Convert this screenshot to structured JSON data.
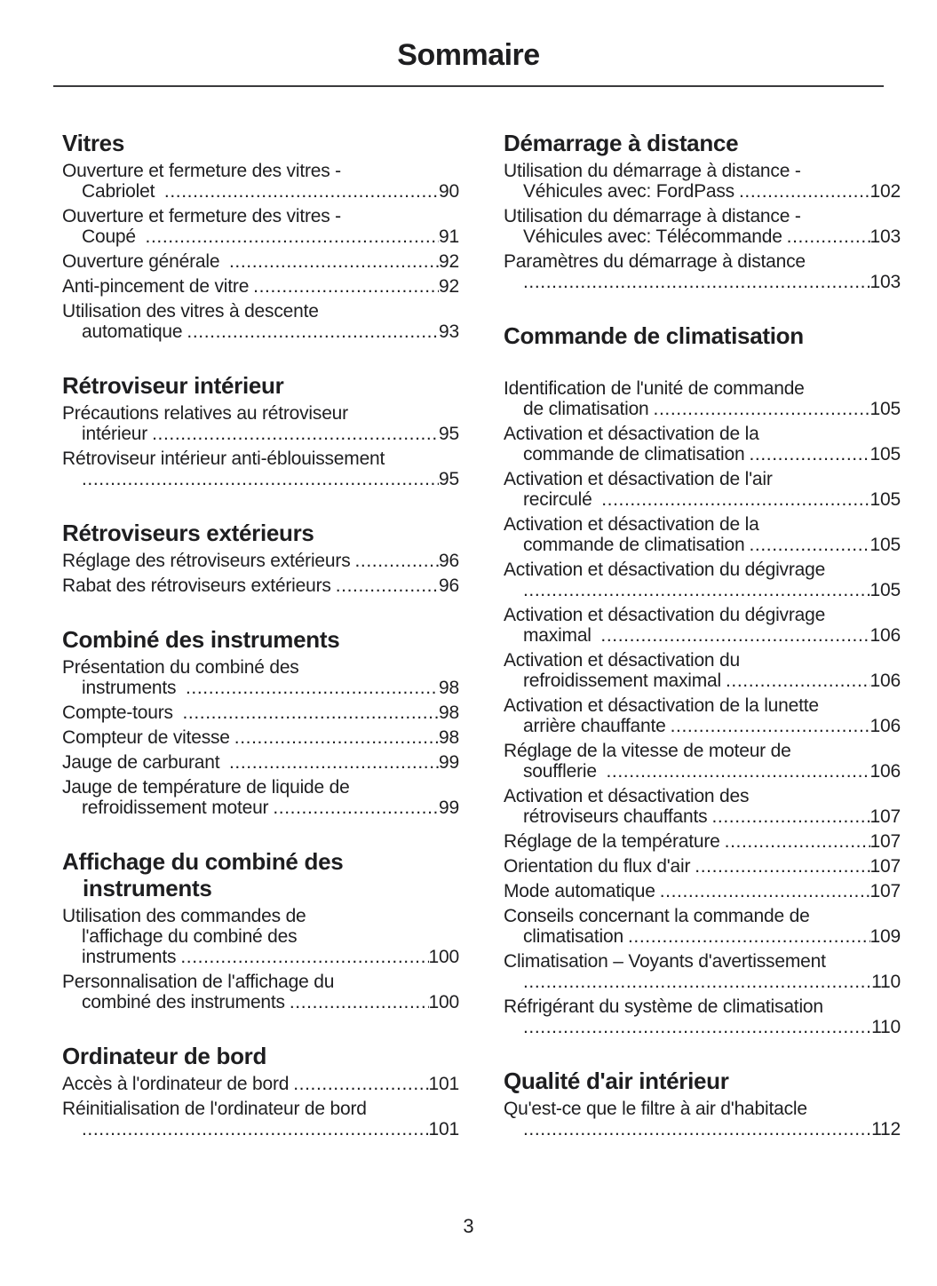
{
  "title": "Sommaire",
  "page_number": "3",
  "colors": {
    "ink": "#1e1e20",
    "rule": "#3a3a3c",
    "background": "#ffffff"
  },
  "columns": [
    {
      "sections": [
        {
          "heading": [
            "Vitres"
          ],
          "entries": [
            {
              "lines": [
                "Ouverture et fermeture des vitres -"
              ],
              "last": "Cabriolet ",
              "page": "90"
            },
            {
              "lines": [
                "Ouverture et fermeture des vitres -"
              ],
              "last": "Coupé ",
              "page": "91"
            },
            {
              "lines": [],
              "last": "Ouverture générale ",
              "page": "92"
            },
            {
              "lines": [],
              "last": "Anti-pincement de vitre",
              "page": "92"
            },
            {
              "lines": [
                "Utilisation des vitres à descente"
              ],
              "last": "automatique",
              "page": "93"
            }
          ]
        },
        {
          "heading": [
            "Rétroviseur intérieur"
          ],
          "entries": [
            {
              "lines": [
                "Précautions relatives au rétroviseur"
              ],
              "last": "intérieur",
              "page": "95"
            },
            {
              "lines": [
                "Rétroviseur intérieur anti-éblouissement"
              ],
              "last": "",
              "page": "95"
            }
          ]
        },
        {
          "heading": [
            "Rétroviseurs extérieurs"
          ],
          "entries": [
            {
              "lines": [],
              "last": "Réglage des rétroviseurs extérieurs",
              "page": "96"
            },
            {
              "lines": [],
              "last": "Rabat des rétroviseurs extérieurs",
              "page": "96"
            }
          ]
        },
        {
          "heading": [
            "Combiné des instruments"
          ],
          "entries": [
            {
              "lines": [
                "Présentation du combiné des"
              ],
              "last": "instruments ",
              "page": "98"
            },
            {
              "lines": [],
              "last": "Compte-tours ",
              "page": "98"
            },
            {
              "lines": [],
              "last": "Compteur de vitesse",
              "page": "98"
            },
            {
              "lines": [],
              "last": "Jauge de carburant ",
              "page": "99"
            },
            {
              "lines": [
                "Jauge de température de liquide de"
              ],
              "last": "refroidissement moteur",
              "page": "99"
            }
          ]
        },
        {
          "heading": [
            "Affichage du combiné des",
            "instruments"
          ],
          "entries": [
            {
              "lines": [
                "Utilisation des commandes de",
                "l'affichage du combiné des"
              ],
              "last": "instruments",
              "page": "100"
            },
            {
              "lines": [
                "Personnalisation de l'affichage du"
              ],
              "last": "combiné des instruments",
              "page": "100"
            }
          ]
        },
        {
          "heading": [
            "Ordinateur de bord"
          ],
          "entries": [
            {
              "lines": [],
              "last": "Accès à l'ordinateur de bord",
              "page": "101"
            },
            {
              "lines": [
                "Réinitialisation de l'ordinateur de bord"
              ],
              "last": "",
              "page": "101"
            }
          ]
        }
      ]
    },
    {
      "sections": [
        {
          "heading": [
            "Démarrage à distance"
          ],
          "entries": [
            {
              "lines": [
                "Utilisation du démarrage à distance -"
              ],
              "last": "Véhicules avec: FordPass",
              "page": "102"
            },
            {
              "lines": [
                "Utilisation du démarrage à distance -"
              ],
              "last": "Véhicules avec: Télécommande",
              "page": "103"
            },
            {
              "lines": [
                "Paramètres du démarrage à distance"
              ],
              "last": "",
              "page": "103"
            }
          ]
        },
        {
          "heading": [
            "Commande de climatisation"
          ],
          "extra_gap": true,
          "entries": [
            {
              "lines": [
                "Identification de l'unité de commande"
              ],
              "last": "de climatisation",
              "page": "105"
            },
            {
              "lines": [
                "Activation et désactivation de la"
              ],
              "last": "commande de climatisation",
              "page": "105"
            },
            {
              "lines": [
                "Activation et désactivation de l'air"
              ],
              "last": "recirculé ",
              "page": "105"
            },
            {
              "lines": [
                "Activation et désactivation de la"
              ],
              "last": "commande de climatisation",
              "page": "105"
            },
            {
              "lines": [
                "Activation et désactivation du dégivrage"
              ],
              "last": "",
              "page": "105"
            },
            {
              "lines": [
                "Activation et désactivation du dégivrage"
              ],
              "last": "maximal ",
              "page": "106"
            },
            {
              "lines": [
                "Activation et désactivation du"
              ],
              "last": "refroidissement maximal",
              "page": "106"
            },
            {
              "lines": [
                "Activation et désactivation de la lunette"
              ],
              "last": "arrière chauffante",
              "page": "106"
            },
            {
              "lines": [
                "Réglage de la vitesse de moteur de"
              ],
              "last": "soufflerie ",
              "page": "106"
            },
            {
              "lines": [
                "Activation et désactivation des"
              ],
              "last": "rétroviseurs chauffants",
              "page": "107"
            },
            {
              "lines": [],
              "last": "Réglage de la température",
              "page": "107"
            },
            {
              "lines": [],
              "last": "Orientation du flux d'air",
              "page": "107"
            },
            {
              "lines": [],
              "last": "Mode automatique",
              "page": "107"
            },
            {
              "lines": [
                "Conseils concernant la commande de"
              ],
              "last": "climatisation",
              "page": "109"
            },
            {
              "lines": [
                "Climatisation – Voyants d'avertissement"
              ],
              "last": "",
              "page": "110"
            },
            {
              "lines": [
                "Réfrigérant du système de climatisation"
              ],
              "last": "",
              "page": "110"
            }
          ]
        },
        {
          "heading": [
            "Qualité d'air intérieur"
          ],
          "entries": [
            {
              "lines": [
                "Qu'est-ce que le filtre à air d'habitacle"
              ],
              "last": "",
              "page": "112"
            }
          ]
        }
      ]
    }
  ]
}
